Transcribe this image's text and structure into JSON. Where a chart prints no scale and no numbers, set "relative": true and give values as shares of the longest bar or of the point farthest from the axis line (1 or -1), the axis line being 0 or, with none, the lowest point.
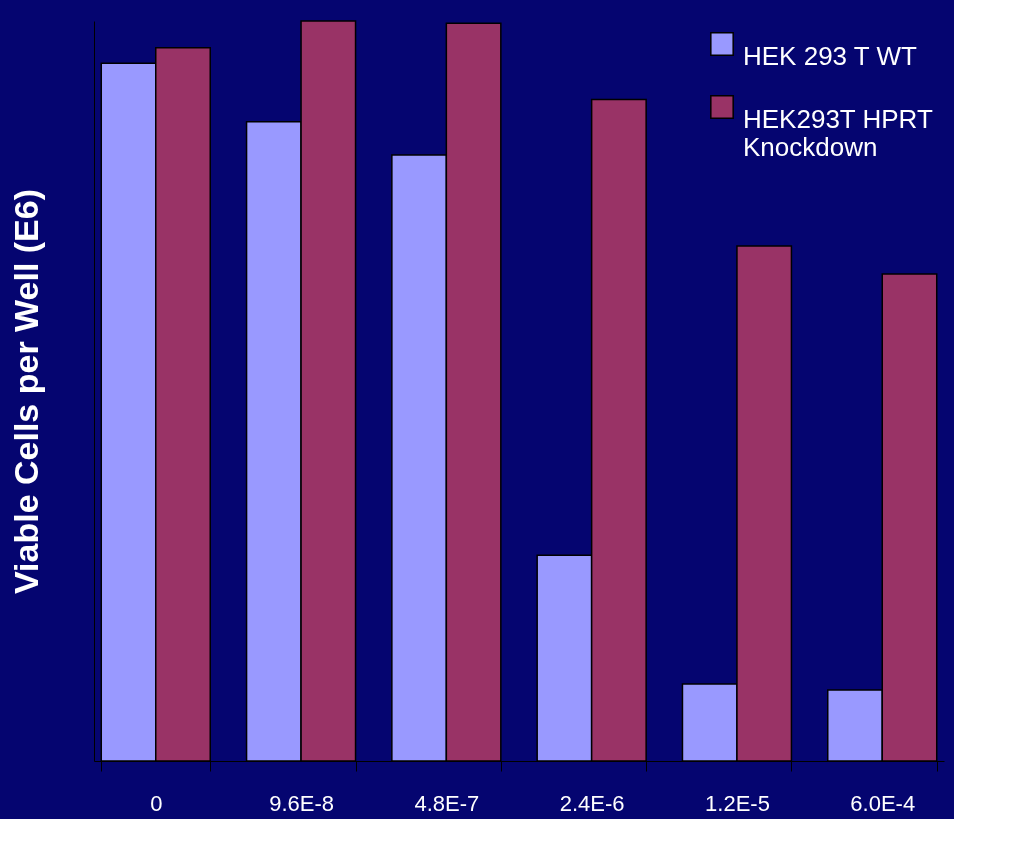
{
  "chart_data": {
    "type": "bar",
    "relative": true,
    "ylabel": "Viable Cells per Well (E6)",
    "categories": [
      "0",
      "9.6E-8",
      "4.8E-7",
      "2.4E-6",
      "1.2E-5",
      "6.0E-4"
    ],
    "series": [
      {
        "name": "HEK 293 T WT",
        "color": "#9999ff",
        "values": [
          0.943,
          0.864,
          0.819,
          0.278,
          0.104,
          0.096
        ]
      },
      {
        "name": "HEK293T HPRT Knockdown",
        "color": "#993366",
        "values": [
          0.964,
          1.0,
          0.997,
          0.894,
          0.696,
          0.658
        ]
      }
    ],
    "legend": "top right"
  }
}
